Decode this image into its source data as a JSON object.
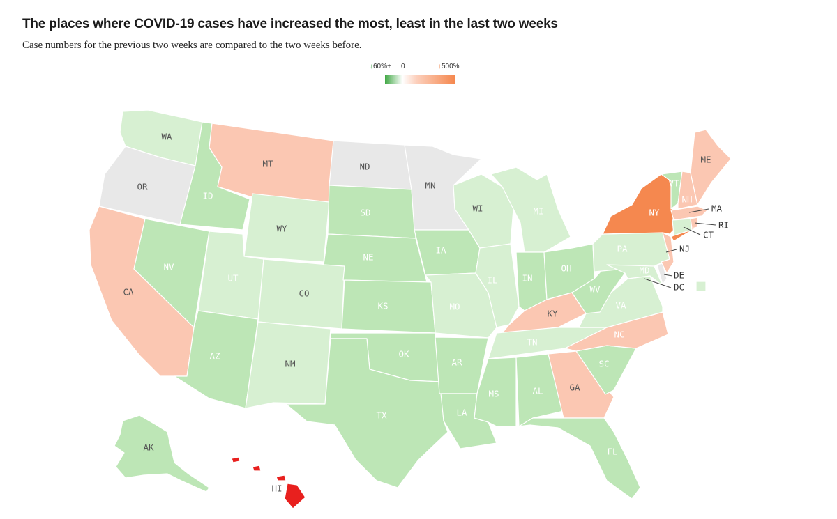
{
  "header": {
    "title": "The places where COVID-19 cases have increased the most, least in the last two weeks",
    "subtitle": "Case numbers for the previous two weeks are compared to the two weeks before."
  },
  "legend": {
    "low_label": "60%+",
    "mid_label": "0",
    "high_label": "500%",
    "low_color": "#41a845",
    "mid_color": "#ffffff",
    "high_color": "#f5884f",
    "no_data_color": "#e8e8e8"
  },
  "colors": {
    "green1": "#d7f0d2",
    "green2": "#bde6b6",
    "salmon": "#fbc7b2",
    "orange": "#f5884f",
    "red": "#e8201e",
    "grey": "#e8e8e8"
  },
  "states": {
    "WA": "WA",
    "OR": "OR",
    "CA": "CA",
    "ID": "ID",
    "NV": "NV",
    "MT": "MT",
    "WY": "WY",
    "UT": "UT",
    "AZ": "AZ",
    "CO": "CO",
    "NM": "NM",
    "ND": "ND",
    "SD": "SD",
    "NE": "NE",
    "KS": "KS",
    "OK": "OK",
    "TX": "TX",
    "MN": "MN",
    "IA": "IA",
    "MO": "MO",
    "AR": "AR",
    "LA": "LA",
    "WI": "WI",
    "IL": "IL",
    "MI": "MI",
    "IN": "IN",
    "OH": "OH",
    "KY": "KY",
    "TN": "TN",
    "MS": "MS",
    "AL": "AL",
    "GA": "GA",
    "FL": "FL",
    "SC": "SC",
    "NC": "NC",
    "VA": "VA",
    "WV": "WV",
    "PA": "PA",
    "NY": "NY",
    "VT": "VT",
    "NH": "NH",
    "ME": "ME",
    "MA": "MA",
    "RI": "RI",
    "CT": "CT",
    "NJ": "NJ",
    "DE": "DE",
    "MD": "MD",
    "DC": "DC",
    "AK": "AK",
    "HI": "HI"
  }
}
